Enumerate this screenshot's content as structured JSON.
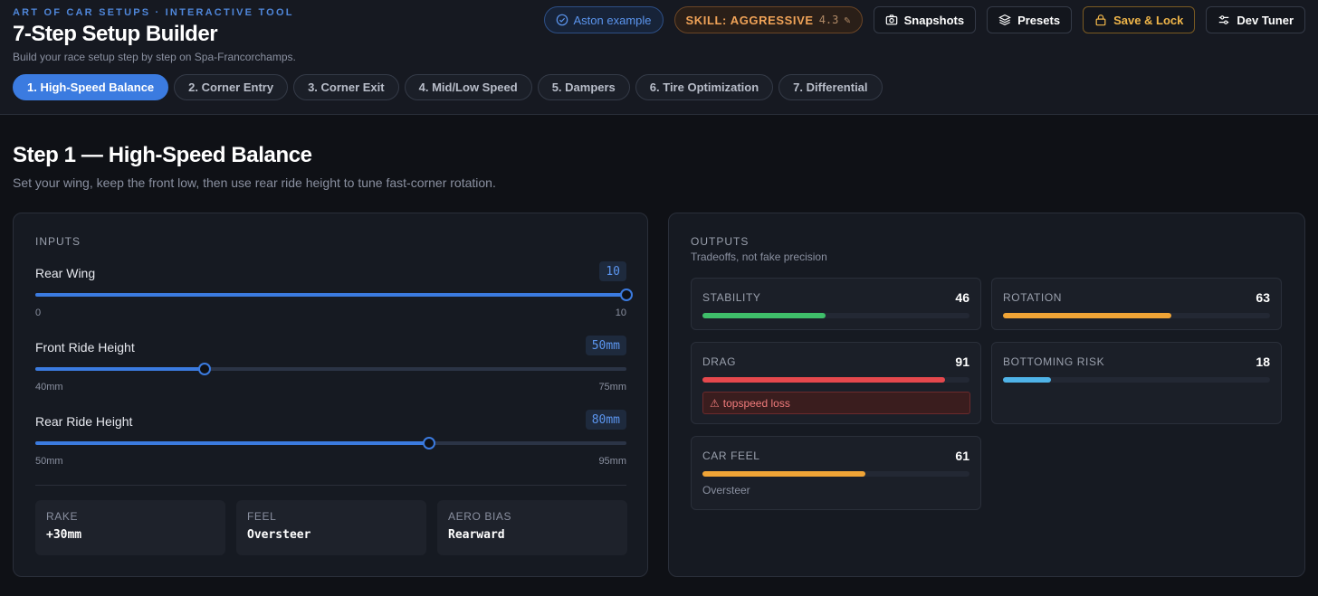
{
  "header": {
    "eyebrow": "ART OF CAR SETUPS · INTERACTIVE TOOL",
    "title": "7-Step Setup Builder",
    "subtitle": "Build your race setup step by step on Spa-Francorchamps."
  },
  "actions": {
    "example_label": "Aston example",
    "skill_label": "SKILL: AGGRESSIVE",
    "skill_value": "4.3",
    "edit_glyph": "✎",
    "snapshots_label": "Snapshots",
    "presets_label": "Presets",
    "save_lock_label": "Save & Lock",
    "dev_tuner_label": "Dev Tuner"
  },
  "steps": [
    {
      "label": "1. High-Speed Balance",
      "active": true
    },
    {
      "label": "2. Corner Entry",
      "active": false
    },
    {
      "label": "3. Corner Exit",
      "active": false
    },
    {
      "label": "4. Mid/Low Speed",
      "active": false
    },
    {
      "label": "5. Dampers",
      "active": false
    },
    {
      "label": "6. Tire Optimization",
      "active": false
    },
    {
      "label": "7. Differential",
      "active": false
    }
  ],
  "step": {
    "title": "Step 1 — High-Speed Balance",
    "description": "Set your wing, keep the front low, then use rear ride height to tune fast-corner rotation."
  },
  "inputs": {
    "heading": "INPUTS",
    "sliders": [
      {
        "label": "Rear Wing",
        "value_text": "10",
        "min_text": "0",
        "max_text": "10",
        "fraction": 1.0
      },
      {
        "label": "Front Ride Height",
        "value_text": "50mm",
        "min_text": "40mm",
        "max_text": "75mm",
        "fraction": 0.2857
      },
      {
        "label": "Rear Ride Height",
        "value_text": "80mm",
        "min_text": "50mm",
        "max_text": "95mm",
        "fraction": 0.6667
      }
    ],
    "summary": [
      {
        "label": "RAKE",
        "value": "+30mm"
      },
      {
        "label": "FEEL",
        "value": "Oversteer"
      },
      {
        "label": "AERO BIAS",
        "value": "Rearward"
      }
    ]
  },
  "outputs": {
    "heading": "OUTPUTS",
    "subheading": "Tradeoffs, not fake precision",
    "metrics": {
      "stability": {
        "label": "STABILITY",
        "value": 46,
        "color": "#3fbf6a"
      },
      "rotation": {
        "label": "ROTATION",
        "value": 63,
        "color": "#f0a436"
      },
      "drag": {
        "label": "DRAG",
        "value": 91,
        "color": "#e5484d",
        "warning": "topspeed loss",
        "warning_glyph": "⚠"
      },
      "bottoming": {
        "label": "BOTTOMING RISK",
        "value": 18,
        "color": "#4fb3e8"
      },
      "car_feel": {
        "label": "CAR FEEL",
        "value": 61,
        "color": "#f0a436",
        "note": "Oversteer"
      }
    }
  }
}
